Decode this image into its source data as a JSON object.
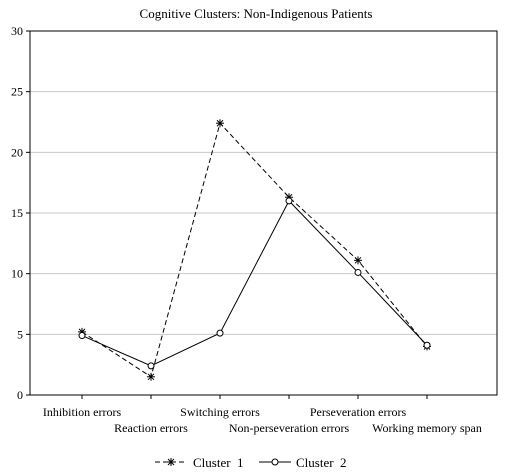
{
  "chart_data": {
    "type": "line",
    "title": "Cognitive Clusters: Non-Indigenous Patients",
    "xlabel": "",
    "ylabel": "",
    "categories": [
      "Inhibition errors",
      "Reaction errors",
      "Switching errors",
      "Non-perseveration errors",
      "Perseveration errors",
      "Working memory span"
    ],
    "ylim": [
      0,
      30
    ],
    "yticks": [
      0,
      5,
      10,
      15,
      20,
      25,
      30
    ],
    "grid": true,
    "legend_position": "bottom-center",
    "series": [
      {
        "name": "Cluster  1",
        "values": [
          5.2,
          1.5,
          22.4,
          16.3,
          11.1,
          4.0
        ],
        "line_style": "dashed",
        "marker": "asterisk",
        "color": "#000000"
      },
      {
        "name": "Cluster  2",
        "values": [
          4.9,
          2.4,
          5.1,
          16.0,
          10.1,
          4.1
        ],
        "line_style": "solid",
        "marker": "circle",
        "color": "#000000"
      }
    ]
  }
}
